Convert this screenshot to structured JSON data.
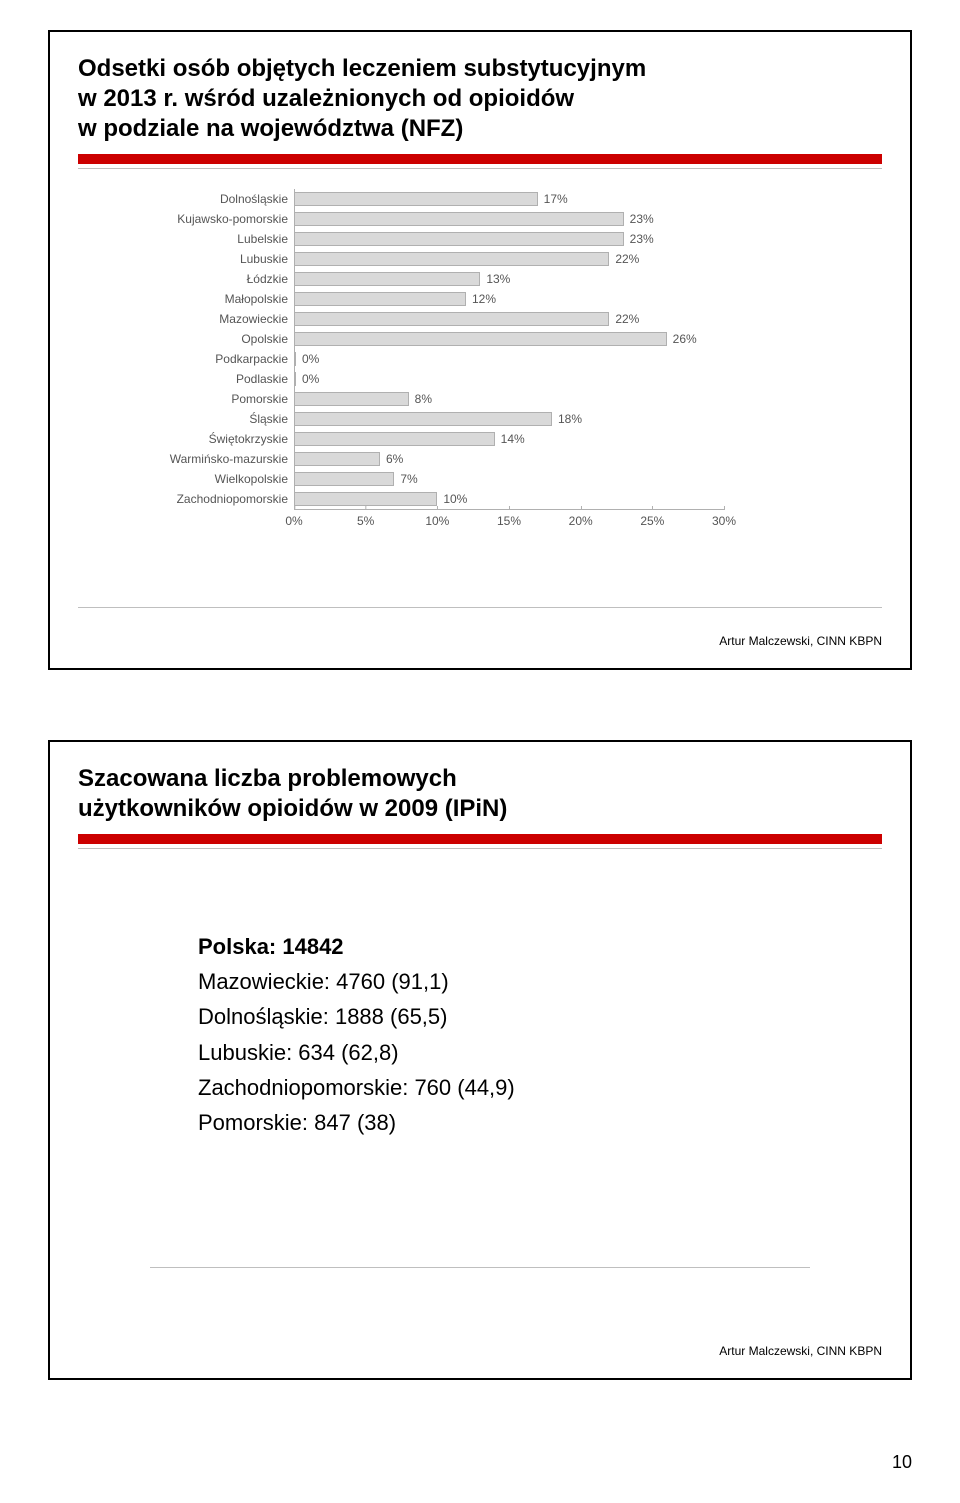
{
  "page_number": "10",
  "slide1": {
    "title_line1": "Odsetki osób objętych leczeniem substytucyjnym",
    "title_line2": "w 2013 r. wśród uzależnionych od opioidów",
    "title_line3": "w podziale na województwa (NFZ)",
    "source": "Artur Malczewski, CINN KBPN",
    "chart": {
      "type": "bar-horizontal",
      "xmax": 30,
      "bar_fill": "#d9d9d9",
      "bar_border": "#b0b0b0",
      "text_color": "#555555",
      "ticks": [
        0,
        5,
        10,
        15,
        20,
        25,
        30
      ],
      "tick_suffix": "%",
      "rows": [
        {
          "label": "Dolnośląskie",
          "value": 17
        },
        {
          "label": "Kujawsko-pomorskie",
          "value": 23
        },
        {
          "label": "Lubelskie",
          "value": 23
        },
        {
          "label": "Lubuskie",
          "value": 22
        },
        {
          "label": "Łódzkie",
          "value": 13
        },
        {
          "label": "Małopolskie",
          "value": 12
        },
        {
          "label": "Mazowieckie",
          "value": 22
        },
        {
          "label": "Opolskie",
          "value": 26
        },
        {
          "label": "Podkarpackie",
          "value": 0
        },
        {
          "label": "Podlaskie",
          "value": 0
        },
        {
          "label": "Pomorskie",
          "value": 8
        },
        {
          "label": "Śląskie",
          "value": 18
        },
        {
          "label": "Świętokrzyskie",
          "value": 14
        },
        {
          "label": "Warmińsko-mazurskie",
          "value": 6
        },
        {
          "label": "Wielkopolskie",
          "value": 7
        },
        {
          "label": "Zachodniopomorskie",
          "value": 10
        }
      ]
    }
  },
  "slide2": {
    "title_line1": "Szacowana liczba problemowych",
    "title_line2": "użytkowników opioidów w 2009 (IPiN)",
    "body": {
      "line1": "Polska: 14842",
      "line2": "Mazowieckie: 4760 (91,1)",
      "line3": "Dolnośląskie: 1888 (65,5)",
      "line4": "Lubuskie: 634 (62,8)",
      "line5": "Zachodniopomorskie: 760 (44,9)",
      "line6": "Pomorskie: 847 (38)"
    },
    "source": "Artur Malczewski, CINN KBPN"
  },
  "colors": {
    "accent": "#cc0000",
    "border": "#000000",
    "rule": "#bfbfbf"
  }
}
